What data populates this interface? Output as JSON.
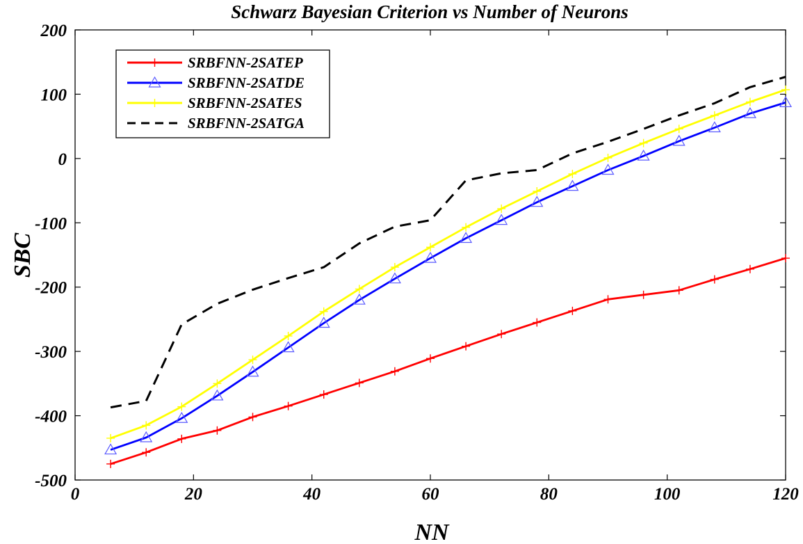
{
  "chart_data": {
    "type": "line",
    "title": "Schwarz Bayesian Criterion vs Number of Neurons",
    "xlabel": "NN",
    "ylabel": "SBC",
    "xlim": [
      0,
      120
    ],
    "ylim": [
      -500,
      200
    ],
    "xticks": [
      0,
      20,
      40,
      60,
      80,
      100,
      120
    ],
    "yticks": [
      -500,
      -400,
      -300,
      -200,
      -100,
      0,
      100,
      200
    ],
    "xtick_labels": [
      "0",
      "20",
      "40",
      "60",
      "80",
      "100",
      "120"
    ],
    "ytick_labels": [
      "-500",
      "-400",
      "-300",
      "-200",
      "-100",
      "0",
      "100",
      "200"
    ],
    "grid": false,
    "legend_position": "top-left",
    "x": [
      6,
      12,
      18,
      24,
      30,
      36,
      42,
      48,
      54,
      60,
      66,
      72,
      78,
      84,
      90,
      96,
      102,
      108,
      114,
      120
    ],
    "series": [
      {
        "name": "SRBFNN-2SATEP",
        "color": "#ff0000",
        "marker": "plus",
        "dash": "solid",
        "values": [
          -475,
          -457,
          -436,
          -423,
          -402,
          -385,
          -367,
          -349,
          -331,
          -311,
          -292,
          -273,
          -255,
          -237,
          -219,
          -212,
          -205,
          -188,
          -172,
          -155
        ]
      },
      {
        "name": "SRBFNN-2SATDE",
        "color": "#0000ff",
        "marker": "triangle",
        "dash": "solid",
        "values": [
          -453,
          -434,
          -404,
          -369,
          -332,
          -294,
          -256,
          -220,
          -187,
          -155,
          -124,
          -96,
          -68,
          -43,
          -18,
          4,
          27,
          48,
          70,
          87
        ]
      },
      {
        "name": "SRBFNN-2SATES",
        "color": "#ffff00",
        "marker": "plus",
        "dash": "solid",
        "values": [
          -435,
          -415,
          -386,
          -350,
          -313,
          -276,
          -238,
          -203,
          -169,
          -138,
          -107,
          -78,
          -51,
          -24,
          1,
          24,
          46,
          67,
          88,
          107
        ]
      },
      {
        "name": "SRBFNN-2SATGA",
        "color": "#000000",
        "marker": "none",
        "dash": "dashed",
        "values": [
          -387,
          -377,
          -258,
          -226,
          -204,
          -186,
          -169,
          -132,
          -106,
          -96,
          -34,
          -23,
          -18,
          8,
          26,
          46,
          67,
          86,
          111,
          127
        ]
      }
    ]
  }
}
